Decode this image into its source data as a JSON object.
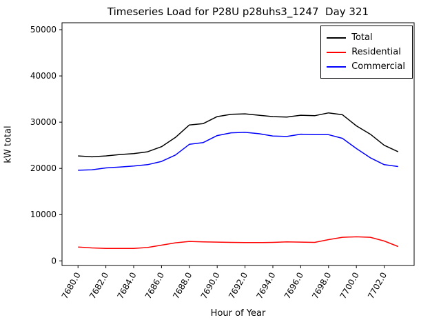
{
  "chart_data": {
    "type": "line",
    "title": "Timeseries Load for P28U p28uhs3_1247  Day 321",
    "xlabel": "Hour of Year",
    "ylabel": "kW total",
    "x": [
      7680,
      7681,
      7682,
      7683,
      7684,
      7685,
      7686,
      7687,
      7688,
      7689,
      7690,
      7691,
      7692,
      7693,
      7694,
      7695,
      7696,
      7697,
      7698,
      7699,
      7700,
      7701,
      7702,
      7703
    ],
    "series": [
      {
        "name": "Total",
        "color": "#000000",
        "values": [
          22700,
          22500,
          22700,
          23000,
          23200,
          23600,
          24700,
          26700,
          29400,
          29700,
          31200,
          31700,
          31800,
          31500,
          31200,
          31100,
          31500,
          31400,
          32000,
          31600,
          29200,
          27400,
          25000,
          23600
        ]
      },
      {
        "name": "Residential",
        "color": "#ff0000",
        "values": [
          3000,
          2800,
          2700,
          2700,
          2700,
          2900,
          3400,
          3900,
          4200,
          4100,
          4050,
          4000,
          3950,
          3950,
          4000,
          4100,
          4050,
          4000,
          4600,
          5100,
          5200,
          5100,
          4300,
          3100
        ]
      },
      {
        "name": "Commercial",
        "color": "#0000ff",
        "values": [
          19600,
          19700,
          20100,
          20300,
          20500,
          20800,
          21500,
          22900,
          25200,
          25600,
          27100,
          27700,
          27800,
          27500,
          27000,
          26900,
          27400,
          27300,
          27300,
          26500,
          24300,
          22300,
          20800,
          20400
        ]
      }
    ],
    "xticks": [
      7680,
      7682,
      7684,
      7686,
      7688,
      7690,
      7692,
      7694,
      7696,
      7698,
      7700,
      7702
    ],
    "xtick_labels": [
      "7680.0",
      "7682.0",
      "7684.0",
      "7686.0",
      "7688.0",
      "7690.0",
      "7692.0",
      "7694.0",
      "7696.0",
      "7698.0",
      "7700.0",
      "7702.0"
    ],
    "yticks": [
      0,
      10000,
      20000,
      30000,
      40000,
      50000
    ],
    "ytick_labels": [
      "0",
      "10000",
      "20000",
      "30000",
      "40000",
      "50000"
    ],
    "xlim": [
      7678.85,
      7704.15
    ],
    "ylim": [
      -1000,
      51500
    ],
    "legend_position": "upper right",
    "grid": false
  }
}
